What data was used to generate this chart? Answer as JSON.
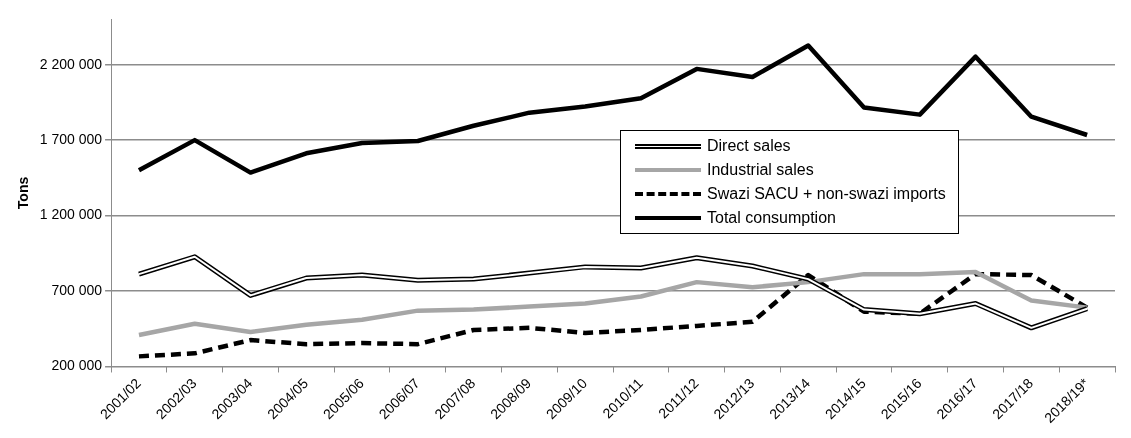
{
  "chart_data": {
    "type": "line",
    "ylabel": "Tons",
    "categories": [
      "2001/02",
      "2002/03",
      "2003/04",
      "2004/05",
      "2005/06",
      "2006/07",
      "2007/08",
      "2008/09",
      "2009/10",
      "2010/11",
      "2011/12",
      "2012/13",
      "2013/14",
      "2014/15",
      "2015/16",
      "2016/17",
      "2017/18",
      "2018/19*"
    ],
    "series": [
      {
        "name": "Direct sales",
        "color": "#000000",
        "line_style": "solid",
        "values": [
          812000,
          927000,
          671000,
          786000,
          806000,
          772000,
          779000,
          819000,
          860000,
          853000,
          920000,
          866000,
          779000,
          577000,
          550000,
          617000,
          456000,
          583000
        ]
      },
      {
        "name": "Industrial sales",
        "color": "#a6a6a6",
        "line_style": "solid",
        "values": [
          409000,
          483000,
          429000,
          476000,
          510000,
          570000,
          577000,
          597000,
          617000,
          664000,
          759000,
          725000,
          759000,
          812000,
          812000,
          826000,
          637000,
          590000
        ]
      },
      {
        "name": "Swazi SACU + non-swazi imports",
        "color": "#000000",
        "line_style": "dashed",
        "values": [
          267000,
          287000,
          375000,
          348000,
          355000,
          348000,
          442000,
          456000,
          422000,
          442000,
          469000,
          496000,
          806000,
          563000,
          550000,
          812000,
          806000,
          590000
        ]
      },
      {
        "name": "Total consumption",
        "color": "#000000",
        "line_style": "solid",
        "values": [
          1500000,
          1700000,
          1485000,
          1613000,
          1681000,
          1694000,
          1795000,
          1882000,
          1923000,
          1977000,
          2172000,
          2118000,
          2327000,
          1916000,
          1869000,
          2253000,
          1855000,
          1734000
        ]
      }
    ],
    "ylim": [
      200000,
      2500000
    ],
    "yticks": [
      {
        "value": 200000,
        "label": "200 000"
      },
      {
        "value": 700000,
        "label": "700 000"
      },
      {
        "value": 1200000,
        "label": "1 200 000"
      },
      {
        "value": 1700000,
        "label": "1 700 000"
      },
      {
        "value": 2200000,
        "label": "2 200 000"
      }
    ],
    "grid": "y",
    "legend": "right",
    "marker": "none"
  }
}
